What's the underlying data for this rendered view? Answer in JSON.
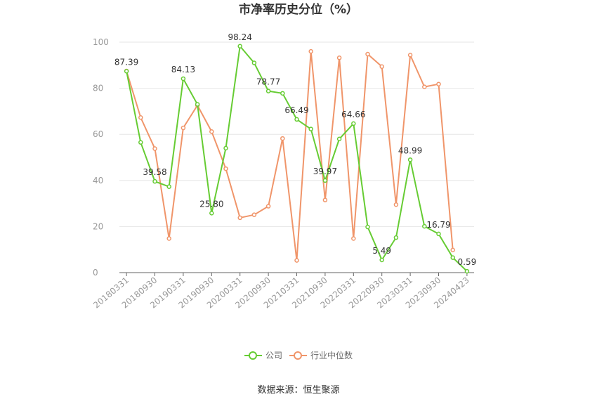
{
  "chart_data": {
    "type": "line",
    "title": "市净率历史分位（%）",
    "source": "数据来源：恒生聚源",
    "ylim": [
      0,
      100
    ],
    "yticks": [
      "0",
      "20",
      "40",
      "60",
      "80",
      "100"
    ],
    "yticks_values": [
      0,
      20,
      40,
      60,
      80,
      100
    ],
    "xtick_labels": [
      "20180331",
      "20180930",
      "20190331",
      "20190930",
      "20200331",
      "20200930",
      "20210331",
      "20210930",
      "20220331",
      "20220930",
      "20230331",
      "20230930",
      "20240423"
    ],
    "xtick_indices": [
      0,
      2,
      4,
      6,
      8,
      10,
      12,
      14,
      16,
      18,
      20,
      22,
      24
    ],
    "x_count": 25,
    "grid": true,
    "legend_position": "bottom",
    "series": [
      {
        "name": "公司",
        "color": "#66cc33",
        "values": [
          87.39,
          56.5,
          39.58,
          37.3,
          84.13,
          73.0,
          25.8,
          54.0,
          98.24,
          91.0,
          78.77,
          77.8,
          66.49,
          62.3,
          39.97,
          58.0,
          64.66,
          19.8,
          5.49,
          15.2,
          48.99,
          20.1,
          16.79,
          6.5,
          0.59
        ],
        "labels": {
          "0": "87.39",
          "2": "39.58",
          "4": "84.13",
          "6": "25.80",
          "8": "98.24",
          "10": "78.77",
          "12": "66.49",
          "14": "39.97",
          "16": "64.66",
          "18": "5.49",
          "20": "48.99",
          "22": "16.79",
          "24": "0.59"
        }
      },
      {
        "name": "行业中位数",
        "color": "#f0956a",
        "values": [
          87.5,
          67.3,
          53.8,
          14.8,
          62.8,
          72.6,
          61.2,
          45.1,
          23.8,
          25.1,
          28.8,
          58.2,
          5.3,
          96.0,
          31.5,
          93.2,
          14.8,
          94.8,
          89.4,
          29.5,
          94.4,
          80.6,
          81.8,
          9.8,
          null
        ]
      }
    ]
  }
}
